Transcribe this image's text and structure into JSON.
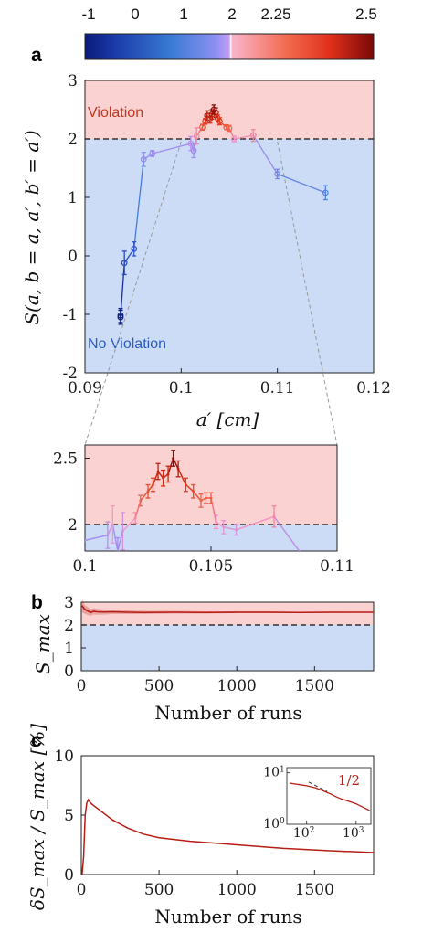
{
  "colorbar": {
    "ticks": [
      "-1",
      "0",
      "1",
      "2",
      "2.25",
      "2.5"
    ],
    "colors": {
      "blue_dark": "#0b1a7a",
      "blue": "#3a7bd5",
      "violet": "#b38cf5",
      "pink": "#f7a7c8",
      "red": "#e5341a",
      "red_dark": "#8b0a0a"
    }
  },
  "colors": {
    "violation_bg": "#fbd2d2",
    "no_violation_bg": "#ccdcf7",
    "violation_text": "#c0371f",
    "no_violation_text": "#2a5cbf",
    "trace_red": "#b51d14"
  },
  "panels": {
    "a": {
      "letter": "a",
      "ylabel": "S(a, b = a, a′, b′ = a′)",
      "xlabel": "a′ [cm]",
      "violation_label": "Violation",
      "no_violation_label": "No Violation"
    },
    "b": {
      "letter": "b",
      "ylabel": "S_max",
      "xlabel": "Number of runs"
    },
    "c": {
      "letter": "c",
      "ylabel": "δS_max / S_max [%]",
      "xlabel": "Number of runs",
      "inset_slope_label": "1/2"
    }
  },
  "chart_data": [
    {
      "type": "scatter",
      "id": "a",
      "x_label": "a′ [cm]",
      "y_label": "S(a, b = a, a′, b′ = a′)",
      "xlim": [
        0.09,
        0.12
      ],
      "ylim": [
        -2,
        3
      ],
      "xticks": [
        "0.09",
        "0.1",
        "0.11",
        "0.12"
      ],
      "yticks": [
        "-2",
        "-1",
        "0",
        "1",
        "2",
        "3"
      ],
      "threshold": 2,
      "grid": false,
      "x": [
        0.0937,
        0.0937,
        0.0941,
        0.0951,
        0.0961,
        0.097,
        0.101,
        0.1013,
        0.1016,
        0.1022,
        0.1025,
        0.1027,
        0.103,
        0.1032,
        0.1034,
        0.1036,
        0.1038,
        0.104,
        0.1047,
        0.105,
        0.1055,
        0.1075,
        0.11,
        0.115
      ],
      "y": [
        -1.02,
        -1.05,
        -0.12,
        0.12,
        1.65,
        1.75,
        1.92,
        1.8,
        2.05,
        2.2,
        2.3,
        2.4,
        2.35,
        2.42,
        2.5,
        2.45,
        2.35,
        2.3,
        2.2,
        2.18,
        2.0,
        2.06,
        1.4,
        1.08
      ],
      "err": [
        0.12,
        0.12,
        0.2,
        0.12,
        0.12,
        0.05,
        0.12,
        0.12,
        0.14,
        0.05,
        0.05,
        0.08,
        0.08,
        0.08,
        0.08,
        0.08,
        0.06,
        0.06,
        0.04,
        0.05,
        0.05,
        0.1,
        0.08,
        0.12
      ],
      "regions": [
        "Violation",
        "No Violation"
      ]
    },
    {
      "type": "scatter",
      "id": "a-zoom",
      "xlim": [
        0.1,
        0.11
      ],
      "ylim": [
        1.8,
        2.6
      ],
      "xticks": [
        "0.1",
        "0.105",
        "0.11"
      ],
      "yticks": [
        "2",
        "2.5"
      ],
      "threshold": 2,
      "x": [
        0.1,
        0.1009,
        0.1011,
        0.1013,
        0.1015,
        0.102,
        0.1022,
        0.1025,
        0.1027,
        0.1029,
        0.1031,
        0.1033,
        0.1035,
        0.1037,
        0.104,
        0.1043,
        0.1046,
        0.1048,
        0.105,
        0.1052,
        0.1055,
        0.106,
        0.1075,
        0.1085
      ],
      "y": [
        1.88,
        1.92,
        2.0,
        1.8,
        1.95,
        2.05,
        2.18,
        2.25,
        2.3,
        2.4,
        2.35,
        2.38,
        2.5,
        2.42,
        2.3,
        2.25,
        2.18,
        2.2,
        2.2,
        2.02,
        1.98,
        1.96,
        2.06,
        1.8
      ],
      "err": [
        0.0,
        0.1,
        0.14,
        0.1,
        0.14,
        0.04,
        0.04,
        0.05,
        0.05,
        0.06,
        0.06,
        0.06,
        0.06,
        0.06,
        0.05,
        0.05,
        0.05,
        0.04,
        0.04,
        0.05,
        0.05,
        0.04,
        0.08,
        0.0
      ]
    },
    {
      "type": "line",
      "id": "b",
      "x_label": "Number of runs",
      "y_label": "S_max",
      "xlim": [
        0,
        1880
      ],
      "ylim": [
        0,
        3
      ],
      "xticks": [
        "0",
        "500",
        "1000",
        "1500"
      ],
      "yticks": [
        "0",
        "1",
        "2",
        "3"
      ],
      "threshold": 2,
      "x": [
        5,
        20,
        40,
        60,
        80,
        100,
        150,
        200,
        300,
        400,
        600,
        800,
        1000,
        1200,
        1400,
        1600,
        1880
      ],
      "y": [
        2.85,
        2.7,
        2.62,
        2.55,
        2.6,
        2.58,
        2.57,
        2.58,
        2.56,
        2.55,
        2.56,
        2.55,
        2.56,
        2.56,
        2.55,
        2.56,
        2.56
      ],
      "err": [
        0.3,
        0.2,
        0.18,
        0.15,
        0.14,
        0.13,
        0.11,
        0.1,
        0.08,
        0.07,
        0.06,
        0.05,
        0.04,
        0.04,
        0.03,
        0.03,
        0.02
      ]
    },
    {
      "type": "line",
      "id": "c",
      "x_label": "Number of runs",
      "y_label": "δS_max / S_max [%]",
      "xlim": [
        0,
        1880
      ],
      "ylim": [
        0,
        10
      ],
      "xticks": [
        "0",
        "500",
        "1000",
        "1500"
      ],
      "yticks": [
        "0",
        "5",
        "10"
      ],
      "x": [
        5,
        15,
        25,
        35,
        45,
        55,
        70,
        100,
        150,
        200,
        300,
        400,
        500,
        700,
        1000,
        1300,
        1600,
        1880
      ],
      "y": [
        0.0,
        1.5,
        5.0,
        6.0,
        6.3,
        6.1,
        5.9,
        5.6,
        5.1,
        4.6,
        3.9,
        3.4,
        3.1,
        2.8,
        2.5,
        2.2,
        2.0,
        1.85
      ],
      "inset": {
        "scale": "log-log",
        "xticks": [
          "10^2",
          "10^3"
        ],
        "yticks": [
          "10^0",
          "10^1"
        ],
        "slope_label": "1/2"
      }
    }
  ]
}
